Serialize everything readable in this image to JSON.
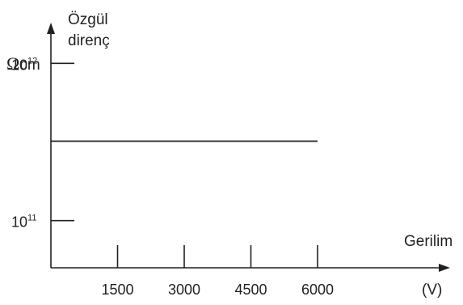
{
  "chart_data": {
    "type": "line",
    "ylabel_line1": "Özgül",
    "ylabel_line2": "direnç",
    "yunit_symbol": "Ω",
    "yunit_rest": "cm",
    "xlabel": "Gerilim",
    "xunit": "(V)",
    "x_ticks": [
      {
        "value": 1500,
        "label": "1500"
      },
      {
        "value": 3000,
        "label": "3000"
      },
      {
        "value": 4500,
        "label": "4500"
      },
      {
        "value": 6000,
        "label": "6000"
      }
    ],
    "y_ticks": [
      {
        "value": 100000000000.0,
        "base": "10",
        "exp": "11"
      },
      {
        "value": 1000000000000.0,
        "base": "10",
        "exp": "12"
      }
    ],
    "y_scale": "log",
    "xlim": [
      0,
      8000
    ],
    "ylim_log10": [
      10.7,
      12.3
    ],
    "series": [
      {
        "x": [
          0,
          6000
        ],
        "y": [
          320000000000.0,
          320000000000.0
        ],
        "color": "#231f20"
      }
    ]
  }
}
